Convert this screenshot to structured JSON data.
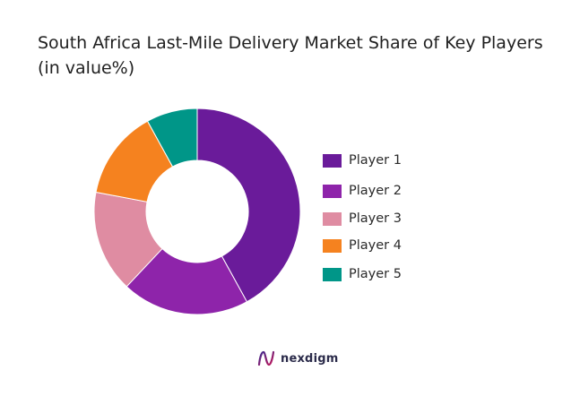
{
  "chart_data": {
    "type": "pie",
    "title": "South Africa Last-Mile Delivery Market Share of Key Players (in value%)",
    "categories": [
      "Player 1",
      "Player 2",
      "Player 3",
      "Player 4",
      "Player 5"
    ],
    "values": [
      42,
      20,
      16,
      14,
      8
    ],
    "colors": [
      "#6a1b9a",
      "#8e24aa",
      "#df8ca2",
      "#f5821f",
      "#009688"
    ],
    "donut": true,
    "legend": "right"
  },
  "brand": {
    "name": "nexdigm",
    "logo_icon": "nexdigm-logo-icon"
  }
}
